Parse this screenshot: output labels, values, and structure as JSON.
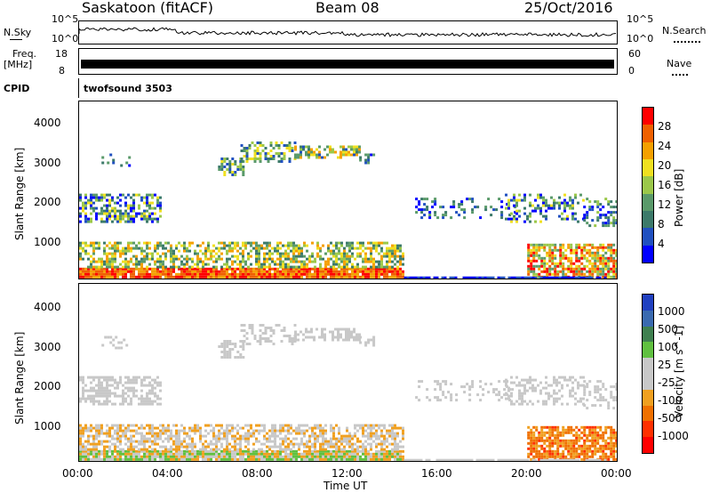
{
  "header": {
    "site": "Saskatoon (fitACF)",
    "beam": "Beam 08",
    "date": "25/Oct/2016"
  },
  "top_panels": {
    "nsky_label": "N.Sky",
    "nsky_ticks": [
      "10^5",
      "10^0"
    ],
    "nsearch_label": "N.Search",
    "nsearch_ticks": [
      "10^5",
      "10^0"
    ],
    "freq_label_1": "Freq.",
    "freq_label_2": "[MHz]",
    "freq_ticks": [
      "18",
      "8"
    ],
    "nave_label": "Nave",
    "nave_ticks": [
      "60",
      "0"
    ],
    "cpid_label": "CPID",
    "cpid_value": "twofsound 3503"
  },
  "colors": {
    "power_scale": [
      "#0000ff",
      "#2050c0",
      "#3c7a6a",
      "#5a9a6a",
      "#9bc84a",
      "#f0e020",
      "#f5a000",
      "#f06000",
      "#ff0000"
    ],
    "velocity_scale": [
      "#2040c0",
      "#3a6ab0",
      "#3f8050",
      "#60c040",
      "#c8c8c8",
      "#c8c8c8",
      "#f0a020",
      "#f07000",
      "#ff3000",
      "#ff0000"
    ]
  },
  "chart_data": [
    {
      "type": "heatmap",
      "name": "power",
      "ylabel": "Slant Range [km]",
      "yticks": [
        "1000",
        "2000",
        "3000",
        "4000"
      ],
      "ylim": [
        180,
        4600
      ],
      "xlim_hours": [
        0,
        24
      ],
      "colorbar_label": "Power [dB]",
      "colorbar_ticks": [
        "4",
        "8",
        "12",
        "16",
        "20",
        "24",
        "28"
      ],
      "colorbar_range": [
        0,
        32
      ]
    },
    {
      "type": "heatmap",
      "name": "velocity",
      "ylabel": "Slant Range [km]",
      "yticks": [
        "1000",
        "2000",
        "3000",
        "4000"
      ],
      "ylim": [
        180,
        4600
      ],
      "xlim_hours": [
        0,
        24
      ],
      "colorbar_label": "Velocity [m s^-1]",
      "colorbar_ticks": [
        "1000",
        "500",
        "100",
        "25",
        "-25",
        "-100",
        "-500",
        "-1000"
      ]
    }
  ],
  "xaxis": {
    "ticks": [
      "00:00",
      "04:00",
      "08:00",
      "12:00",
      "16:00",
      "20:00",
      "00:00"
    ],
    "label": "Time UT"
  }
}
